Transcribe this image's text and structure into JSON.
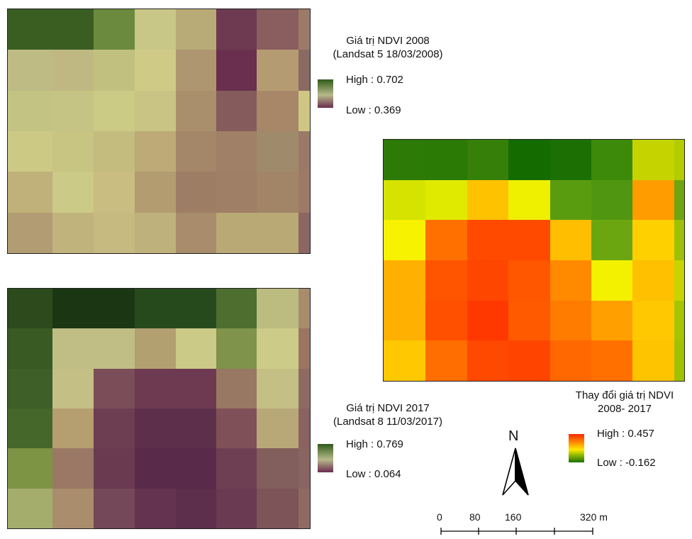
{
  "map_2008": {
    "legend_title_line1": "Giá trị NDVI 2008",
    "legend_title_line2": "(Landsat 5 18/03/2008)",
    "high_label": "High : 0.702",
    "low_label": "Low : 0.369",
    "cells": [
      [
        "#3a5e22",
        "#3a5e22",
        "#6b8a3d",
        "#c8c787",
        "#b9ab77",
        "#6e3a52",
        "#8a5e5e",
        "#9b7a67"
      ],
      [
        "#bfbb84",
        "#c0b882",
        "#c2c07f",
        "#cfcb86",
        "#ad9670",
        "#6a2f4f",
        "#b59b72",
        "#8a6a63"
      ],
      [
        "#c3c484",
        "#c6c484",
        "#cccb86",
        "#c9c484",
        "#a98f6c",
        "#855b5c",
        "#a88768",
        "#d0c684"
      ],
      [
        "#ccc985",
        "#c8c583",
        "#c4bb7f",
        "#bdaa76",
        "#a48669",
        "#a08066",
        "#a08a6c",
        "#9a7a66"
      ],
      [
        "#c0b07a",
        "#ccca87",
        "#c9bd81",
        "#b29c70",
        "#9e7d65",
        "#9f7f66",
        "#a28567",
        "#9d7a66"
      ],
      [
        "#b29c73",
        "#c0b37c",
        "#c6ba80",
        "#bfb17b",
        "#a88c6b",
        "#b9a975",
        "#b9a975",
        "#8c6662"
      ]
    ]
  },
  "map_2017": {
    "legend_title_line1": "Giá trị NDVI 2017",
    "legend_title_line2": "(Landsat 8 11/03/2017)",
    "high_label": "High : 0.769",
    "low_label": "Low : 0.064",
    "cells": [
      [
        "#2c4a1c",
        "#1b3612",
        "#1b3612",
        "#274a1c",
        "#274a1c",
        "#4e6e30",
        "#bcbb80",
        "#a88c6b"
      ],
      [
        "#3a5a24",
        "#c0bd85",
        "#c0bd85",
        "#b3a070",
        "#ccca87",
        "#7f934a",
        "#cccb88",
        "#9b7562"
      ],
      [
        "#3e5f27",
        "#c4bf85",
        "#7a4d58",
        "#6d3a52",
        "#6d3a52",
        "#987862",
        "#c4bf84",
        "#8e6a62"
      ],
      [
        "#46672a",
        "#b59f70",
        "#6d3d52",
        "#5e2f4b",
        "#5e2f4b",
        "#805058",
        "#b9a877",
        "#8a6260"
      ],
      [
        "#7d9444",
        "#9a7865",
        "#6a3a51",
        "#5a2a4a",
        "#5a2a4a",
        "#6e3f53",
        "#825e5c",
        "#8a6461"
      ],
      [
        "#a5ad6d",
        "#aa8d6c",
        "#744858",
        "#643350",
        "#5e2e4d",
        "#6a3a52",
        "#7d5458",
        "#8e6a62"
      ]
    ]
  },
  "map_change": {
    "legend_title_line1": "Thay đổi giá trị NDVI",
    "legend_title_line2": "2008- 2017",
    "high_label": "High : 0.457",
    "low_label": "Low : -0.162",
    "cells": [
      [
        "#2d7a07",
        "#2b7a05",
        "#367f08",
        "#146b00",
        "#1c7003",
        "#3d8a0a",
        "#c5d400",
        "#b3cc00"
      ],
      [
        "#d6e300",
        "#e0ea00",
        "#ffc200",
        "#efef00",
        "#5a9c10",
        "#509610",
        "#ff9c00",
        "#6fa510"
      ],
      [
        "#f7f200",
        "#ff7000",
        "#ff4a00",
        "#ff4a00",
        "#ffbf00",
        "#6ba610",
        "#ffd000",
        "#9cc108"
      ],
      [
        "#ffb000",
        "#ff5400",
        "#ff4600",
        "#ff5600",
        "#ff8a00",
        "#f3f000",
        "#ffc000",
        "#c6d500"
      ],
      [
        "#ffb000",
        "#ff5000",
        "#ff3800",
        "#ff5a00",
        "#ff7c00",
        "#ffa000",
        "#ffc800",
        "#a5c500"
      ],
      [
        "#ffc800",
        "#ff6e00",
        "#ff4800",
        "#ff4400",
        "#ff6800",
        "#ff7000",
        "#ffc400",
        "#9fc300"
      ]
    ]
  },
  "north_label": "N",
  "scale": {
    "ticks": [
      "0",
      "80",
      "160",
      "320 m"
    ]
  }
}
